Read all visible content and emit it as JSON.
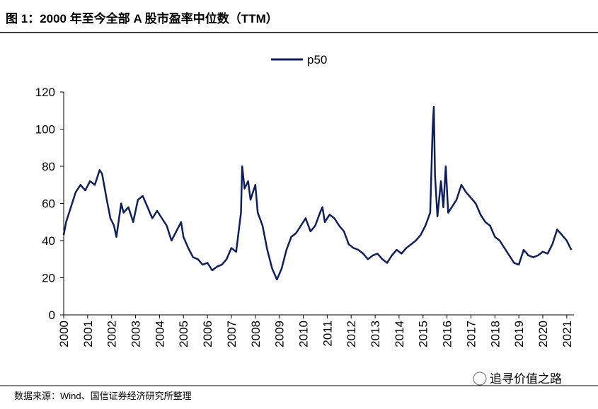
{
  "chart_data": {
    "type": "line",
    "title": "图 1：2000 年至今全部 A 股市盈率中位数（TTM）",
    "source": "数据来源：Wind、国信证券经济研究所整理",
    "watermark": "追寻价值之路",
    "x": [
      2000.0,
      2000.1,
      2000.3,
      2000.5,
      2000.7,
      2000.9,
      2001.1,
      2001.3,
      2001.5,
      2001.6,
      2001.8,
      2001.95,
      2002.1,
      2002.2,
      2002.4,
      2002.5,
      2002.7,
      2002.9,
      2003.1,
      2003.3,
      2003.5,
      2003.7,
      2003.9,
      2004.1,
      2004.3,
      2004.5,
      2004.7,
      2004.9,
      2005.0,
      2005.2,
      2005.4,
      2005.6,
      2005.8,
      2006.0,
      2006.2,
      2006.4,
      2006.6,
      2006.8,
      2007.0,
      2007.2,
      2007.4,
      2007.45,
      2007.55,
      2007.7,
      2007.8,
      2008.0,
      2008.1,
      2008.3,
      2008.5,
      2008.7,
      2008.9,
      2009.1,
      2009.3,
      2009.5,
      2009.7,
      2009.9,
      2010.1,
      2010.3,
      2010.5,
      2010.7,
      2010.8,
      2010.9,
      2011.1,
      2011.3,
      2011.5,
      2011.7,
      2011.9,
      2012.1,
      2012.3,
      2012.5,
      2012.7,
      2012.9,
      2013.1,
      2013.3,
      2013.5,
      2013.7,
      2013.9,
      2014.1,
      2014.3,
      2014.5,
      2014.7,
      2014.9,
      2015.1,
      2015.3,
      2015.4,
      2015.45,
      2015.5,
      2015.6,
      2015.75,
      2015.85,
      2015.95,
      2016.05,
      2016.2,
      2016.4,
      2016.6,
      2016.8,
      2017.0,
      2017.2,
      2017.4,
      2017.6,
      2017.8,
      2018.0,
      2018.2,
      2018.4,
      2018.6,
      2018.8,
      2019.0,
      2019.2,
      2019.4,
      2019.6,
      2019.8,
      2020.0,
      2020.2,
      2020.4,
      2020.6,
      2020.8,
      2021.0,
      2021.15,
      2021.2
    ],
    "series": [
      {
        "name": "p50",
        "color": "#0f1f5c",
        "values": [
          43,
          50,
          58,
          66,
          70,
          67,
          72,
          70,
          78,
          76,
          62,
          52,
          48,
          42,
          60,
          55,
          58,
          50,
          62,
          64,
          58,
          52,
          56,
          52,
          48,
          40,
          45,
          50,
          42,
          36,
          31,
          30,
          27,
          28,
          24,
          26,
          27,
          30,
          36,
          34,
          55,
          80,
          68,
          72,
          62,
          70,
          55,
          48,
          35,
          25,
          19,
          25,
          35,
          42,
          44,
          48,
          52,
          45,
          48,
          55,
          58,
          50,
          54,
          52,
          48,
          45,
          38,
          36,
          35,
          33,
          30,
          32,
          33,
          30,
          28,
          32,
          35,
          33,
          36,
          38,
          40,
          43,
          48,
          55,
          100,
          112,
          75,
          53,
          72,
          58,
          80,
          55,
          58,
          62,
          70,
          66,
          63,
          60,
          54,
          50,
          48,
          42,
          40,
          36,
          32,
          28,
          27,
          35,
          32,
          31,
          32,
          34,
          33,
          38,
          46,
          43,
          40,
          36,
          35
        ]
      }
    ],
    "xlim": [
      2000,
      2021.3
    ],
    "xticks": [
      2000,
      2001,
      2002,
      2003,
      2004,
      2005,
      2006,
      2007,
      2008,
      2009,
      2010,
      2011,
      2012,
      2013,
      2014,
      2015,
      2016,
      2017,
      2018,
      2019,
      2020,
      2021
    ],
    "ylim": [
      0,
      120
    ],
    "yticks": [
      0,
      20,
      40,
      60,
      80,
      100,
      120
    ],
    "legend": "top"
  }
}
